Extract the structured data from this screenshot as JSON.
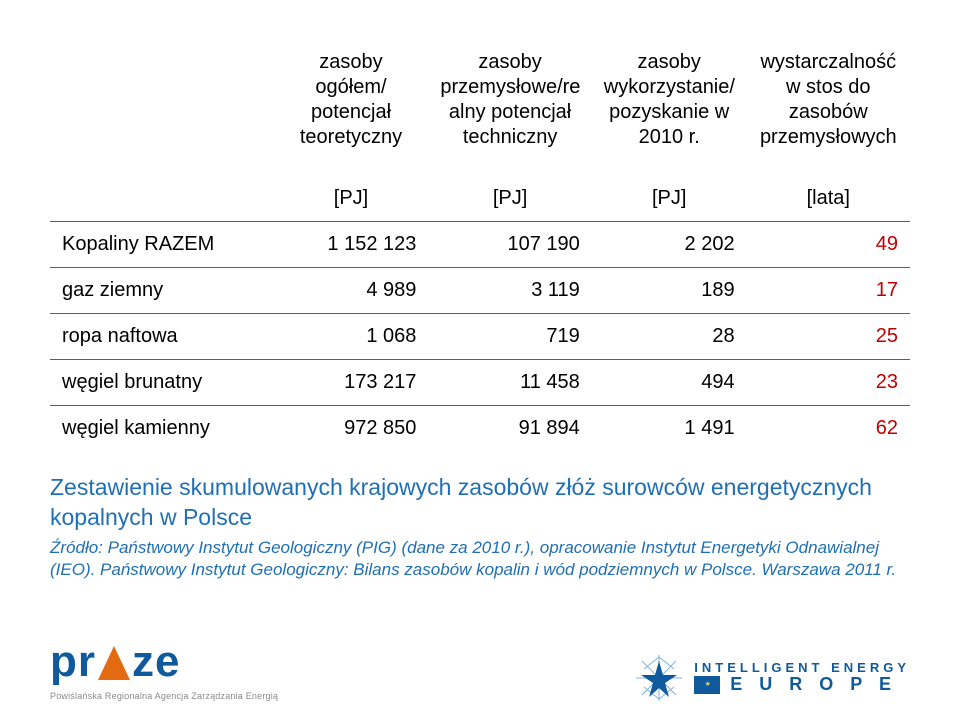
{
  "table": {
    "title": "",
    "columns": [
      "",
      "zasoby ogółem/ potencjał teoretyczny",
      "zasoby przemysłowe/re alny potencjał techniczny",
      "zasoby wykorzystanie/ pozyskanie w 2010 r.",
      "wystarczalność w stos do zasobów przemysłowych"
    ],
    "units": [
      "",
      "[PJ]",
      "[PJ]",
      "[PJ]",
      "[lata]"
    ],
    "rows": [
      {
        "label": "Kopaliny RAZEM",
        "vals": [
          "1 152 123",
          "107 190",
          "2 202",
          "49"
        ],
        "emph": true
      },
      {
        "label": "gaz ziemny",
        "vals": [
          "4 989",
          "3 119",
          "189",
          "17"
        ],
        "emph": false
      },
      {
        "label": "ropa naftowa",
        "vals": [
          "1 068",
          "719",
          "28",
          "25"
        ],
        "emph": false
      },
      {
        "label": "węgiel brunatny",
        "vals": [
          "173 217",
          "11 458",
          "494",
          "23"
        ],
        "emph": false
      },
      {
        "label": "węgiel kamienny",
        "vals": [
          "972 850",
          "91 894",
          "1 491",
          "62"
        ],
        "emph": false
      }
    ],
    "last_col_color": "#c00000",
    "row_border_color": "#1f6fb5",
    "text_color": "#000000"
  },
  "caption": {
    "title": "Zestawienie skumulowanych krajowych zasobów złóż surowców energetycznych kopalnych w Polsce",
    "source": "Źródło: Państwowy Instytut Geologiczny (PIG) (dane za 2010 r.), opracowanie Instytut Energetyki Odnawialnej (IEO). Państwowy Instytut Geologiczny: Bilans zasobów kopalin i wód podziemnych w Polsce. Warszawa 2011 r.",
    "color": "#1f6fb5"
  },
  "logos": {
    "left_main_1": "pr",
    "left_main_2": "ze",
    "left_sub": "Powiślańska Regionalna Agencja Zarządzania Energią",
    "right_l1": "INTELLIGENT ENERGY",
    "right_l2": "E U R O P E",
    "iee_star_colors": {
      "primary": "#0f5a9c",
      "radiate": "#7fb3dc"
    }
  }
}
